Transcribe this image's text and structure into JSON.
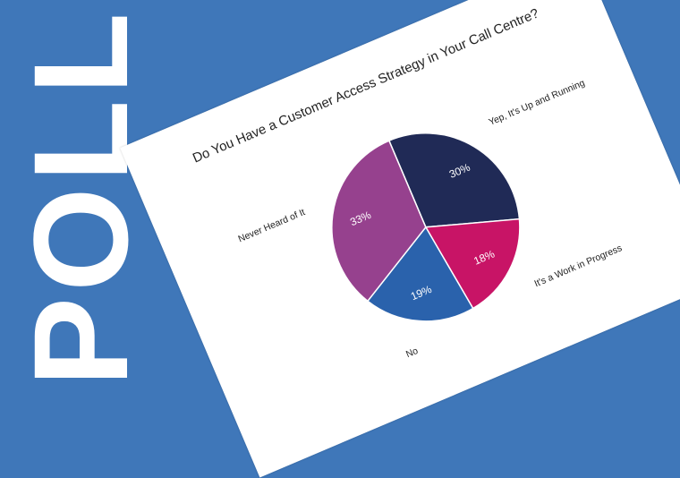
{
  "banner": {
    "text": "POLL"
  },
  "background_color": "#3f77b9",
  "chart_data": {
    "type": "pie",
    "title": "Do You Have a Customer Access Strategy in Your Call Centre?",
    "start": "top, clockwise",
    "slices": [
      {
        "label": "Yep, It's Up and Running",
        "value": 30,
        "display": "30%",
        "color": "#202a56"
      },
      {
        "label": "It's a Work in Progress",
        "value": 18,
        "display": "18%",
        "color": "#c81466"
      },
      {
        "label": "No",
        "value": 19,
        "display": "19%",
        "color": "#2a62ac"
      },
      {
        "label": "Never Heard of It",
        "value": 33,
        "display": "33%",
        "color": "#96418e"
      }
    ]
  }
}
